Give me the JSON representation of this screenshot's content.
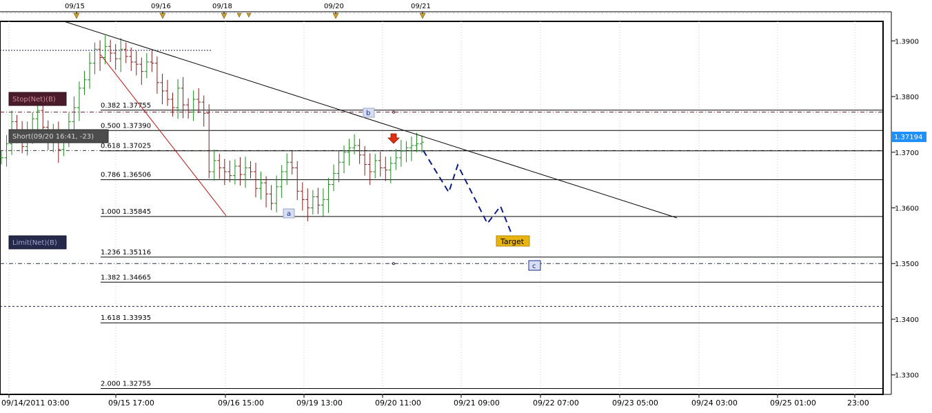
{
  "chart_data": {
    "type": "candlestick",
    "instrument_last_price": "1.37194",
    "y_axis": {
      "range": [
        1.3265,
        1.3935
      ],
      "tick_labels": [
        "1.3900",
        "1.3800",
        "1.3700",
        "1.3600",
        "1.3500",
        "1.3400",
        "1.3300"
      ],
      "tick_values": [
        1.39,
        1.38,
        1.37,
        1.36,
        1.35,
        1.34,
        1.33
      ]
    },
    "x_axis": {
      "tick_labels": [
        "09/14/2011 03:00",
        "09/15 17:00",
        "09/16 15:00",
        "09/19 13:00",
        "09/20 11:00",
        "09/21 09:00",
        "09/22 07:00",
        "09/23 05:00",
        "09/24 03:00",
        "09/25 01:00",
        "23:00"
      ],
      "session_markers": [
        "09/15",
        "09/16",
        "09/18",
        "09/20",
        "09/21"
      ]
    },
    "fibonacci_levels": [
      {
        "ratio": "0.382",
        "price": "1.37755",
        "value": 1.37755
      },
      {
        "ratio": "0.500",
        "price": "1.37390",
        "value": 1.3739
      },
      {
        "ratio": "0.618",
        "price": "1.37025",
        "value": 1.37025
      },
      {
        "ratio": "0.786",
        "price": "1.36506",
        "value": 1.36506
      },
      {
        "ratio": "1.000",
        "price": "1.35845",
        "value": 1.35845
      },
      {
        "ratio": "1.236",
        "price": "1.35116",
        "value": 1.35116
      },
      {
        "ratio": "1.382",
        "price": "1.34665",
        "value": 1.34665
      },
      {
        "ratio": "1.618",
        "price": "1.33935",
        "value": 1.33935
      },
      {
        "ratio": "2.000",
        "price": "1.32755",
        "value": 1.32755
      }
    ],
    "orders": {
      "stop": {
        "label": "Stop(Net)(B)",
        "price": 1.3772
      },
      "short": {
        "label": "Short(09/20 16:41, -23)",
        "price": 1.3703
      },
      "limit": {
        "label": "Limit(Net)(B)",
        "price": 1.35
      }
    },
    "horizontal_levels": [
      1.3883,
      1.3423
    ],
    "wave_labels": {
      "a": "a",
      "b": "b",
      "c": "c",
      "target": "Target"
    },
    "trendline": {
      "from_price": 1.3935,
      "to_price": 1.3582
    },
    "red_line": {
      "from_price": 1.3875,
      "to_price": 1.3586
    },
    "projection": [
      1.3703,
      1.3628,
      1.3677,
      1.3572,
      1.3603,
      1.3535
    ],
    "price_series": [
      1.369,
      1.3715,
      1.3755,
      1.374,
      1.371,
      1.3735,
      1.376,
      1.3775,
      1.3745,
      1.372,
      1.3735,
      1.3705,
      1.3725,
      1.3755,
      1.378,
      1.3815,
      1.383,
      1.386,
      1.3885,
      1.387,
      1.389,
      1.3878,
      1.3868,
      1.3885,
      1.3872,
      1.3862,
      1.3858,
      1.3845,
      1.3862,
      1.386,
      1.3825,
      1.381,
      1.3795,
      1.378,
      1.3815,
      1.3785,
      1.3772,
      1.3795,
      1.379,
      1.377,
      1.3665,
      1.3685,
      1.3672,
      1.3665,
      1.3658,
      1.3675,
      1.366,
      1.3672,
      1.3665,
      1.3635,
      1.3645,
      1.3625,
      1.3608,
      1.3638,
      1.3665,
      1.3682,
      1.3672,
      1.363,
      1.3615,
      1.36,
      1.362,
      1.3605,
      1.3615,
      1.3642,
      1.3662,
      1.3682,
      1.37,
      1.3708,
      1.3712,
      1.3695,
      1.3678,
      1.3665,
      1.3685,
      1.3672,
      1.3668,
      1.368,
      1.369,
      1.3702,
      1.3708,
      1.3712,
      1.3715,
      1.3718
    ]
  }
}
